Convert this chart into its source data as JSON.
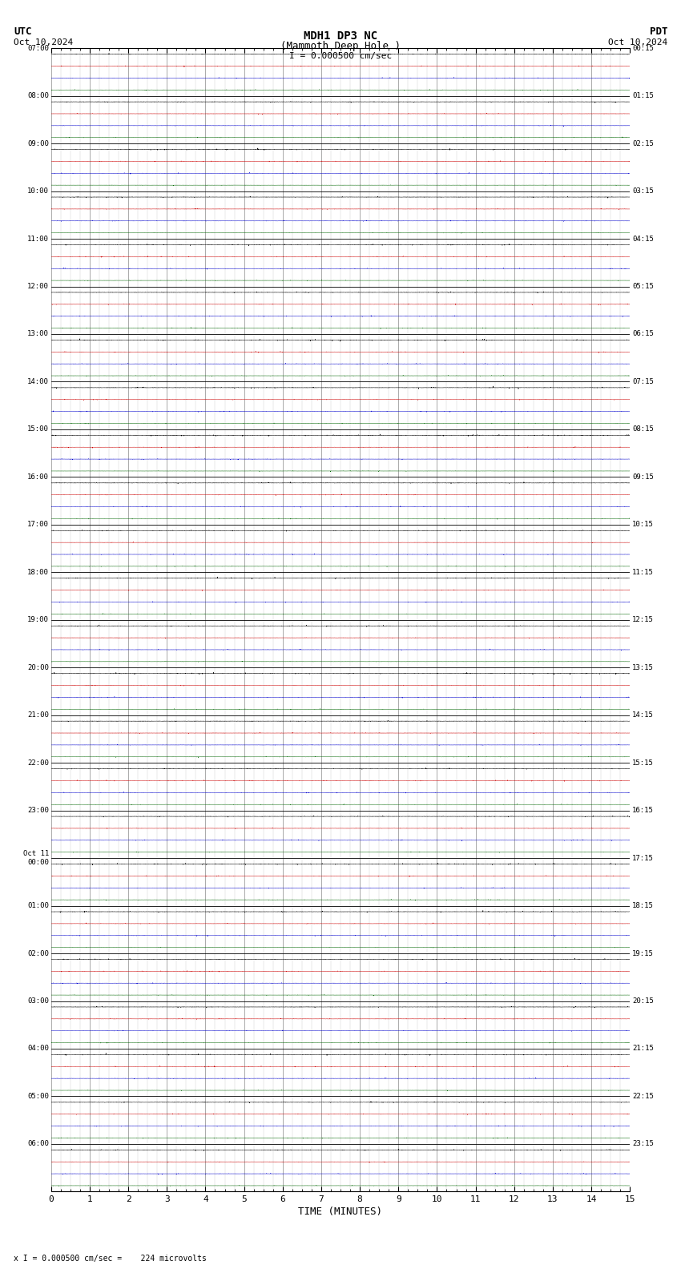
{
  "title_line1": "MDH1 DP3 NC",
  "title_line2": "(Mammoth Deep Hole )",
  "scale_label": "I = 0.000500 cm/sec",
  "utc_label": "UTC",
  "pdt_label": "PDT",
  "utc_date": "Oct 10,2024",
  "pdt_date": "Oct 10,2024",
  "bottom_label": "TIME (MINUTES)",
  "footer_label": "x I = 0.000500 cm/sec =    224 microvolts",
  "left_times": [
    "07:00",
    "08:00",
    "09:00",
    "10:00",
    "11:00",
    "12:00",
    "13:00",
    "14:00",
    "15:00",
    "16:00",
    "17:00",
    "18:00",
    "19:00",
    "20:00",
    "21:00",
    "22:00",
    "23:00",
    "Oct 11\n00:00",
    "01:00",
    "02:00",
    "03:00",
    "04:00",
    "05:00",
    "06:00"
  ],
  "right_times": [
    "00:15",
    "01:15",
    "02:15",
    "03:15",
    "04:15",
    "05:15",
    "06:15",
    "07:15",
    "08:15",
    "09:15",
    "10:15",
    "11:15",
    "12:15",
    "13:15",
    "14:15",
    "15:15",
    "16:15",
    "17:15",
    "18:15",
    "19:15",
    "20:15",
    "21:15",
    "22:15",
    "23:15"
  ],
  "n_rows": 24,
  "traces_per_row": 4,
  "trace_colors": [
    "#000000",
    "#cc0000",
    "#0000cc",
    "#006600"
  ],
  "bg_color": "#ffffff",
  "grid_color": "#888888",
  "noise_amplitudes": [
    0.018,
    0.012,
    0.012,
    0.01
  ],
  "x_ticks": [
    0,
    1,
    2,
    3,
    4,
    5,
    6,
    7,
    8,
    9,
    10,
    11,
    12,
    13,
    14,
    15
  ],
  "n_pts": 4500
}
